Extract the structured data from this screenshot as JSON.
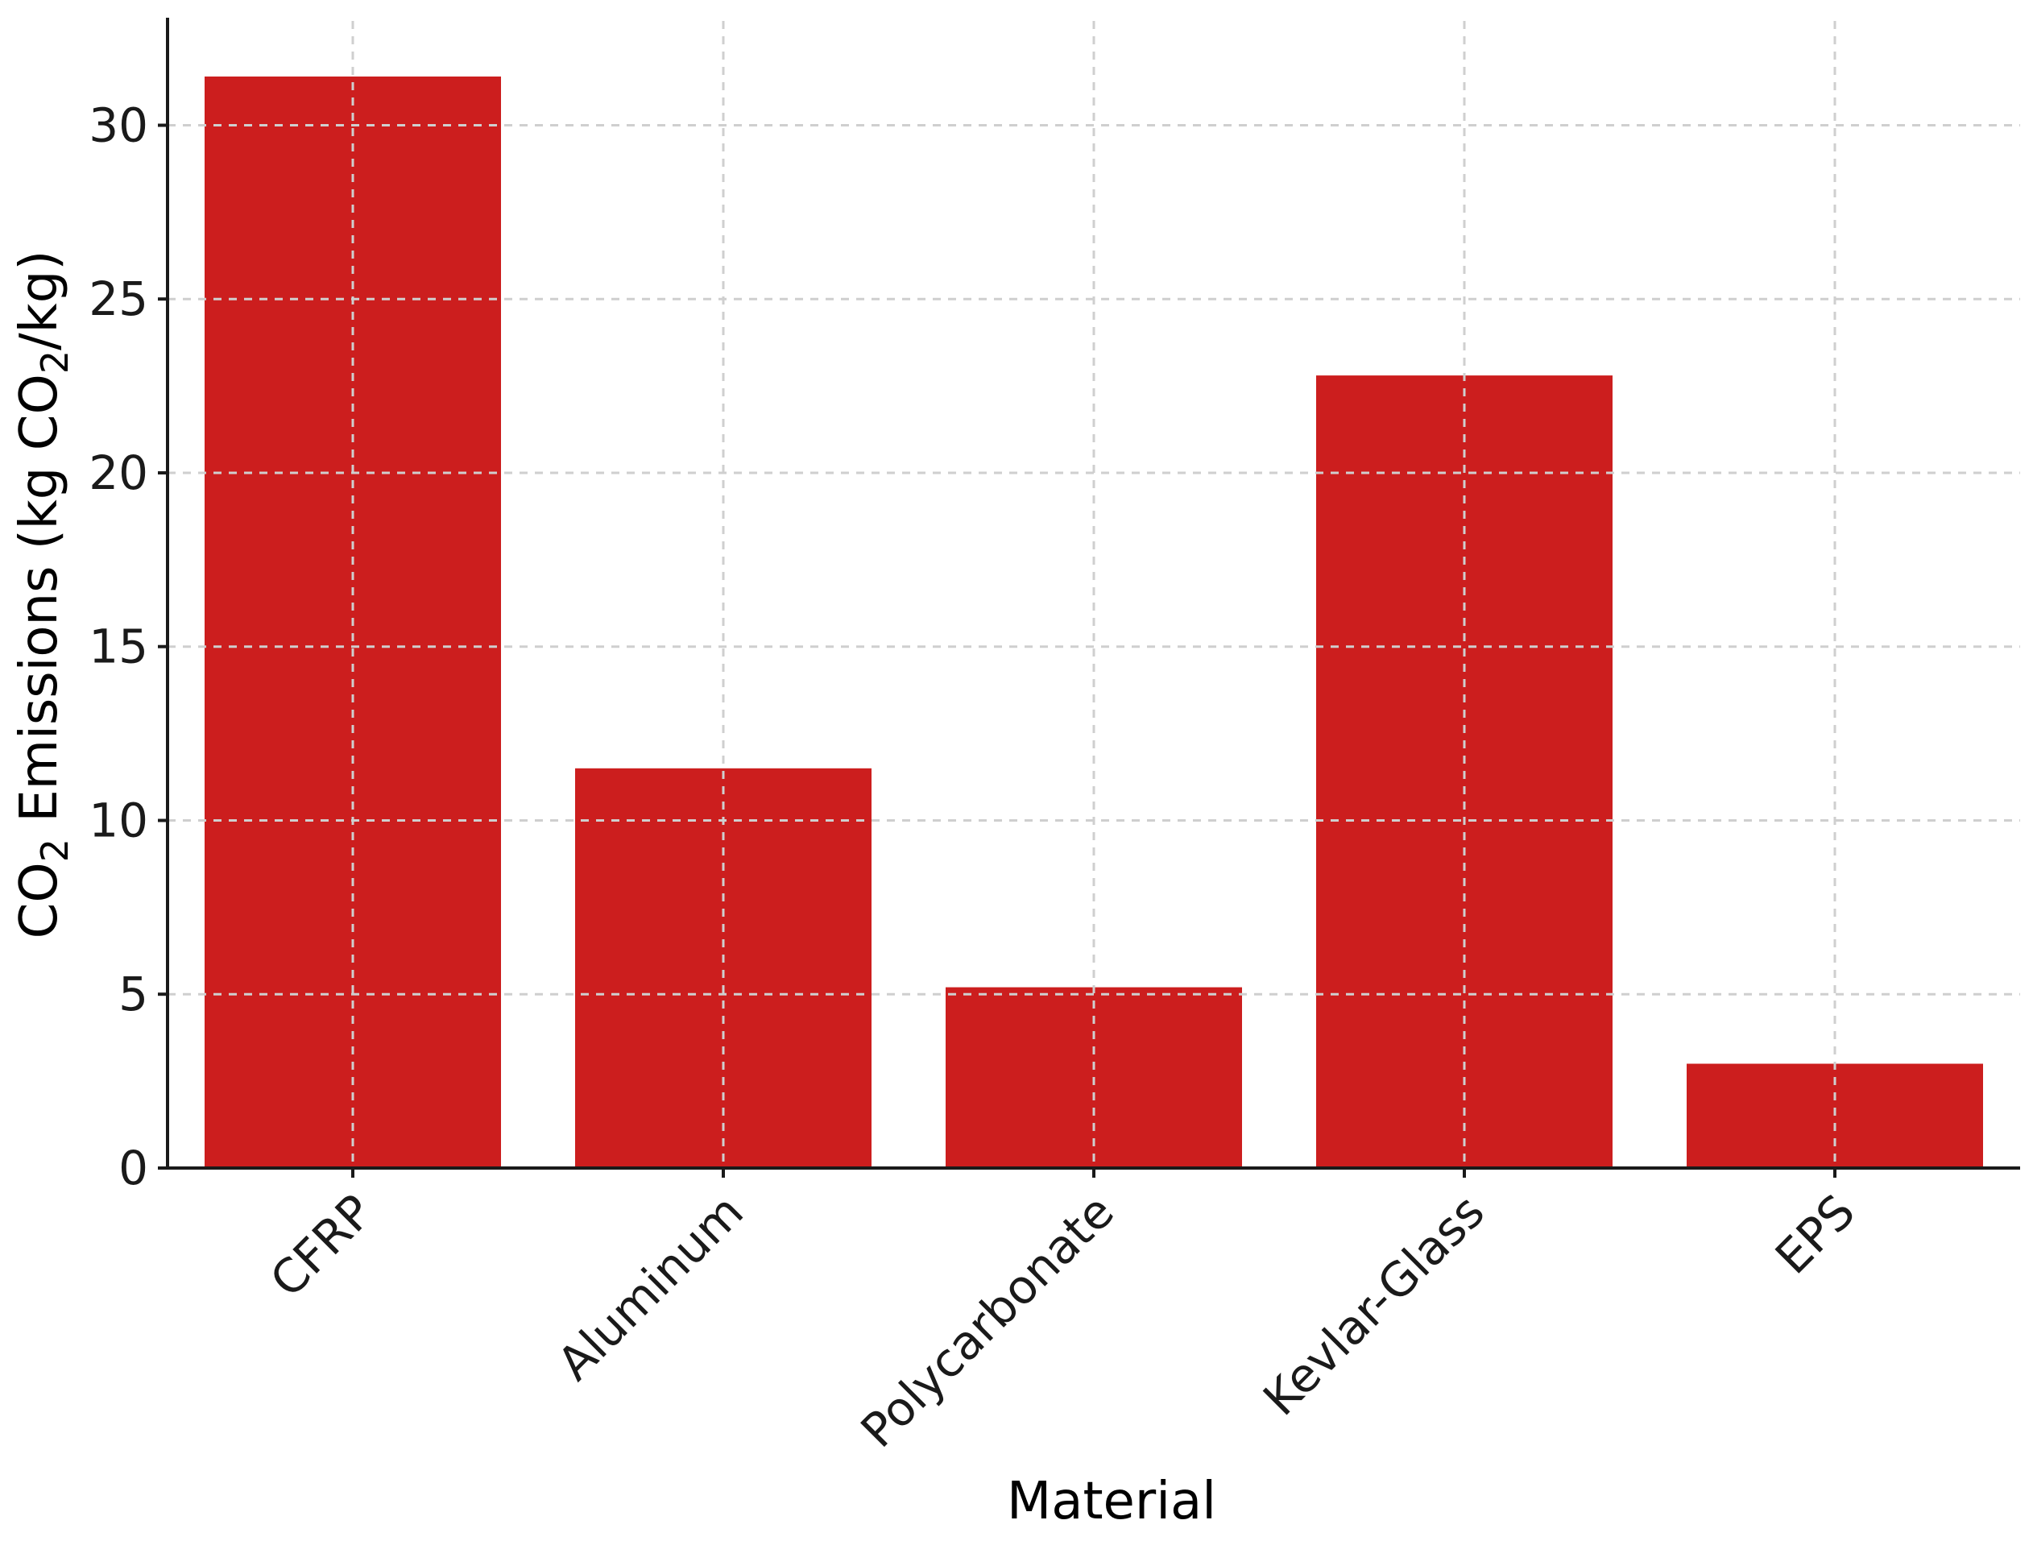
{
  "chart_data": {
    "type": "bar",
    "title": "",
    "xlabel": "Material",
    "ylabel": {
      "prefix": "CO",
      "sub1": "2",
      "middle": " Emissions (kg CO",
      "sub2": "2",
      "suffix": "/kg)"
    },
    "categories": [
      "CFRP",
      "Aluminum",
      "Polycarbonate",
      "Kevlar-Glass",
      "EPS"
    ],
    "values": [
      31.4,
      11.5,
      5.2,
      22.8,
      3.0
    ],
    "ylim": [
      0,
      33
    ],
    "yticks": [
      0,
      5,
      10,
      15,
      20,
      25,
      30
    ],
    "grid": true,
    "legend": "none",
    "bar_color": "#cc1e1e"
  }
}
